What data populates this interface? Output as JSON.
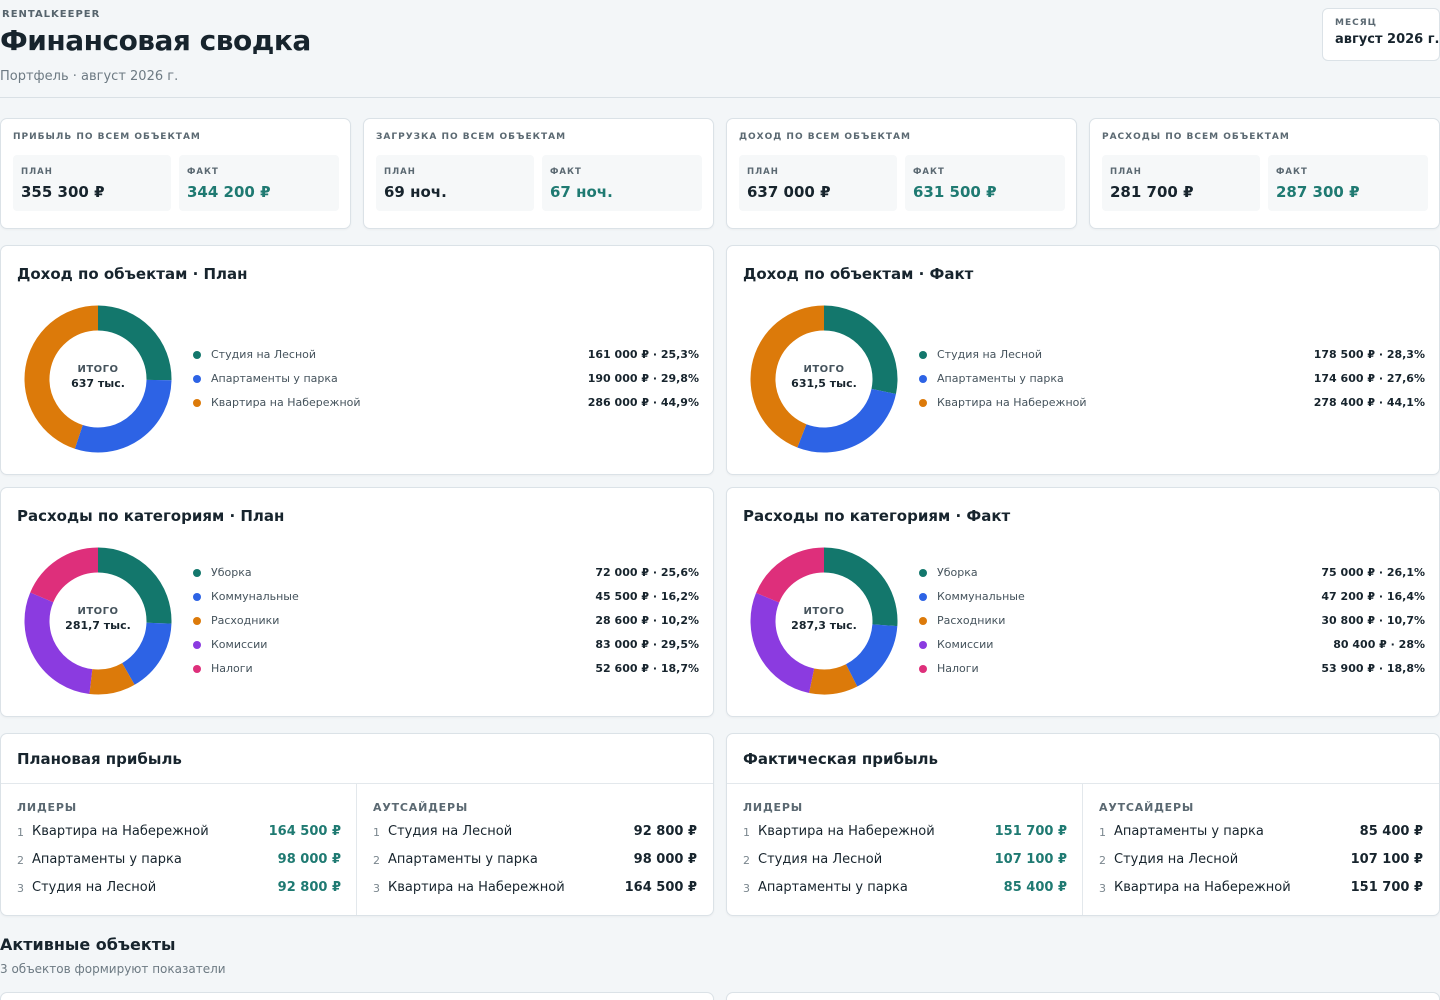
{
  "header": {
    "brand": "RENTALKEEPER",
    "title": "Финансовая сводка",
    "subtitle": "Портфель · август 2026 г.",
    "month_label": "МЕСЯЦ",
    "month_value": "август 2026 г."
  },
  "kpis": [
    {
      "title": "ПРИБЫЛЬ ПО ВСЕМ ОБЪЕКТАМ",
      "plan_label": "ПЛАН",
      "plan_value": "355 300 ₽",
      "fact_label": "ФАКТ",
      "fact_value": "344 200 ₽"
    },
    {
      "title": "ЗАГРУЗКА ПО ВСЕМ ОБЪЕКТАМ",
      "plan_label": "ПЛАН",
      "plan_value": "69 ноч.",
      "fact_label": "ФАКТ",
      "fact_value": "67 ноч."
    },
    {
      "title": "ДОХОД ПО ВСЕМ ОБЪЕКТАМ",
      "plan_label": "ПЛАН",
      "plan_value": "637 000 ₽",
      "fact_label": "ФАКТ",
      "fact_value": "631 500 ₽"
    },
    {
      "title": "РАСХОДЫ ПО ВСЕМ ОБЪЕКТАМ",
      "plan_label": "ПЛАН",
      "plan_value": "281 700 ₽",
      "fact_label": "ФАКТ",
      "fact_value": "287 300 ₽"
    }
  ],
  "chart_data": [
    {
      "type": "pie",
      "title": "Доход по объектам · План",
      "center_label": "ИТОГО",
      "center_value": "637 тыс.",
      "categories": [
        "Студия на Лесной",
        "Апартаменты у парка",
        "Квартира на Набережной"
      ],
      "values": [
        161000,
        190000,
        286000
      ],
      "value_labels": [
        "161 000 ₽ · 25,3%",
        "190 000 ₽ · 29,8%",
        "286 000 ₽ · 44,9%"
      ],
      "colors": [
        "#13776c",
        "#2d63e5",
        "#dc7a0a"
      ]
    },
    {
      "type": "pie",
      "title": "Доход по объектам · Факт",
      "center_label": "ИТОГО",
      "center_value": "631,5 тыс.",
      "categories": [
        "Студия на Лесной",
        "Апартаменты у парка",
        "Квартира на Набережной"
      ],
      "values": [
        178500,
        174600,
        278400
      ],
      "value_labels": [
        "178 500 ₽ · 28,3%",
        "174 600 ₽ · 27,6%",
        "278 400 ₽ · 44,1%"
      ],
      "colors": [
        "#13776c",
        "#2d63e5",
        "#dc7a0a"
      ]
    },
    {
      "type": "pie",
      "title": "Расходы по категориям · План",
      "center_label": "ИТОГО",
      "center_value": "281,7 тыс.",
      "categories": [
        "Уборка",
        "Коммунальные",
        "Расходники",
        "Комиссии",
        "Налоги"
      ],
      "values": [
        72000,
        45500,
        28600,
        83000,
        52600
      ],
      "value_labels": [
        "72 000 ₽ · 25,6%",
        "45 500 ₽ · 16,2%",
        "28 600 ₽ · 10,2%",
        "83 000 ₽ · 29,5%",
        "52 600 ₽ · 18,7%"
      ],
      "colors": [
        "#13776c",
        "#2d63e5",
        "#dc7a0a",
        "#8b3be0",
        "#de2f7b"
      ]
    },
    {
      "type": "pie",
      "title": "Расходы по категориям · Факт",
      "center_label": "ИТОГО",
      "center_value": "287,3 тыс.",
      "categories": [
        "Уборка",
        "Коммунальные",
        "Расходники",
        "Комиссии",
        "Налоги"
      ],
      "values": [
        75000,
        47200,
        30800,
        80400,
        53900
      ],
      "value_labels": [
        "75 000 ₽ · 26,1%",
        "47 200 ₽ · 16,4%",
        "30 800 ₽ · 10,7%",
        "80 400 ₽ · 28%",
        "53 900 ₽ · 18,8%"
      ],
      "colors": [
        "#13776c",
        "#2d63e5",
        "#dc7a0a",
        "#8b3be0",
        "#de2f7b"
      ]
    }
  ],
  "profit_panels": [
    {
      "title": "Плановая прибыль",
      "leaders_label": "ЛИДЕРЫ",
      "outsiders_label": "АУТСАЙДЕРЫ",
      "leaders": [
        {
          "rank": "1",
          "name": "Квартира на Набережной",
          "value": "164 500 ₽"
        },
        {
          "rank": "2",
          "name": "Апартаменты у парка",
          "value": "98 000 ₽"
        },
        {
          "rank": "3",
          "name": "Студия на Лесной",
          "value": "92 800 ₽"
        }
      ],
      "outsiders": [
        {
          "rank": "1",
          "name": "Студия на Лесной",
          "value": "92 800 ₽"
        },
        {
          "rank": "2",
          "name": "Апартаменты у парка",
          "value": "98 000 ₽"
        },
        {
          "rank": "3",
          "name": "Квартира на Набережной",
          "value": "164 500 ₽"
        }
      ]
    },
    {
      "title": "Фактическая прибыль",
      "leaders_label": "ЛИДЕРЫ",
      "outsiders_label": "АУТСАЙДЕРЫ",
      "leaders": [
        {
          "rank": "1",
          "name": "Квартира на Набережной",
          "value": "151 700 ₽"
        },
        {
          "rank": "2",
          "name": "Студия на Лесной",
          "value": "107 100 ₽"
        },
        {
          "rank": "3",
          "name": "Апартаменты у парка",
          "value": "85 400 ₽"
        }
      ],
      "outsiders": [
        {
          "rank": "1",
          "name": "Апартаменты у парка",
          "value": "85 400 ₽"
        },
        {
          "rank": "2",
          "name": "Студия на Лесной",
          "value": "107 100 ₽"
        },
        {
          "rank": "3",
          "name": "Квартира на Набережной",
          "value": "151 700 ₽"
        }
      ]
    }
  ],
  "active_objects": {
    "title": "Активные объекты",
    "subtitle": "3 объектов формируют показатели"
  }
}
